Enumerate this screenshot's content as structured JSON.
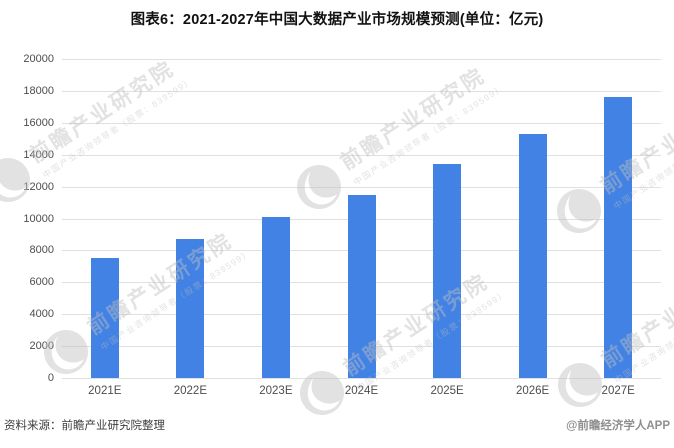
{
  "title": "图表6：2021-2027年中国大数据产业市场规模预测(单位：亿元)",
  "footer": {
    "source": "资料来源：前瞻产业研究院整理",
    "credit": "@前瞻经济学人APP"
  },
  "watermark": {
    "brand": "前瞻产业研究院",
    "tagline": "中国产业咨询领导者（股票：839599）",
    "logo_icon": "qianzhan-circle-logo"
  },
  "colors": {
    "bar": "#4282e4",
    "gridline": "#e0e0e0",
    "axis_text": "#4d4d4d",
    "title_text": "#111111",
    "source_text": "#3d3d3d",
    "credit_text": "#8f8f8f",
    "watermark": "rgba(190,190,190,0.45)",
    "background": "#ffffff"
  },
  "chart_data": {
    "type": "bar",
    "title": "图表6：2021-2027年中国大数据产业市场规模预测(单位：亿元)",
    "unit": "亿元",
    "categories": [
      "2021E",
      "2022E",
      "2023E",
      "2024E",
      "2025E",
      "2026E",
      "2027E"
    ],
    "values": [
      7500,
      8700,
      10100,
      11500,
      13400,
      15300,
      17600
    ],
    "xlabel": "",
    "ylabel": "",
    "ylim": [
      0,
      20000
    ],
    "ytick_interval": 2000,
    "yticks": [
      0,
      2000,
      4000,
      6000,
      8000,
      10000,
      12000,
      14000,
      16000,
      18000,
      20000
    ],
    "grid": true,
    "legend": false,
    "bar_color": "#4282e4"
  }
}
